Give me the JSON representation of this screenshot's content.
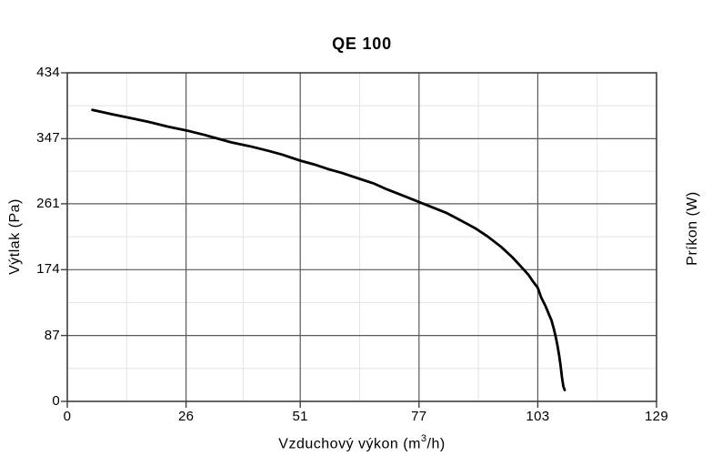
{
  "chart_data": {
    "type": "line",
    "title": "QE 100",
    "xlabel": "Vzduchový výkon (m³/h)",
    "xlabel_parts": {
      "prefix": "Vzduchový výkon (m",
      "sup": "3",
      "suffix": "/h)"
    },
    "ylabel_left": "Výtlak (Pa)",
    "ylabel_right": "Príkon (W)",
    "xlim": [
      0,
      129
    ],
    "ylim": [
      0,
      434
    ],
    "x_ticks": [
      0,
      26,
      51,
      77,
      103,
      129
    ],
    "y_ticks": [
      0,
      87,
      174,
      261,
      347,
      434
    ],
    "x_minor_ticks": [
      13,
      38.5,
      64,
      90,
      116
    ],
    "y_minor_ticks": [
      43.5,
      130.5,
      217.5,
      304,
      390.5
    ],
    "grid": "major and minor gridlines, boxed plot border",
    "legend": "none",
    "series": [
      {
        "name": "QE 100 pressure curve",
        "points": [
          [
            5.5,
            385
          ],
          [
            10,
            379
          ],
          [
            14,
            374
          ],
          [
            18,
            369
          ],
          [
            22,
            363
          ],
          [
            26,
            358
          ],
          [
            30,
            352
          ],
          [
            33,
            347
          ],
          [
            36,
            342
          ],
          [
            40,
            337
          ],
          [
            44,
            331
          ],
          [
            47,
            326
          ],
          [
            51,
            318
          ],
          [
            54,
            313
          ],
          [
            57,
            307
          ],
          [
            60,
            302
          ],
          [
            64,
            294
          ],
          [
            67,
            288
          ],
          [
            70,
            280
          ],
          [
            73,
            273
          ],
          [
            75.5,
            267
          ],
          [
            78,
            261
          ],
          [
            80.5,
            255
          ],
          [
            83,
            249
          ],
          [
            85.5,
            241
          ],
          [
            88,
            233
          ],
          [
            89.5,
            228
          ],
          [
            92,
            218
          ],
          [
            95,
            204
          ],
          [
            97.5,
            190
          ],
          [
            99.5,
            177
          ],
          [
            101,
            167
          ],
          [
            102,
            158
          ],
          [
            103,
            150
          ],
          [
            103.7,
            138
          ],
          [
            104.7,
            126
          ],
          [
            105.5,
            114
          ],
          [
            106,
            107
          ],
          [
            106.5,
            96
          ],
          [
            106.9,
            86
          ],
          [
            107.3,
            74
          ],
          [
            107.7,
            60
          ],
          [
            108,
            47
          ],
          [
            108.3,
            32
          ],
          [
            108.6,
            20
          ],
          [
            108.9,
            15
          ]
        ]
      }
    ]
  },
  "colors": {
    "background": "#ffffff",
    "curve": "#000000",
    "major_grid": "#595959",
    "minor_grid": "#e4e4e4",
    "axis": "#3f3f3f",
    "text": "#000000"
  }
}
